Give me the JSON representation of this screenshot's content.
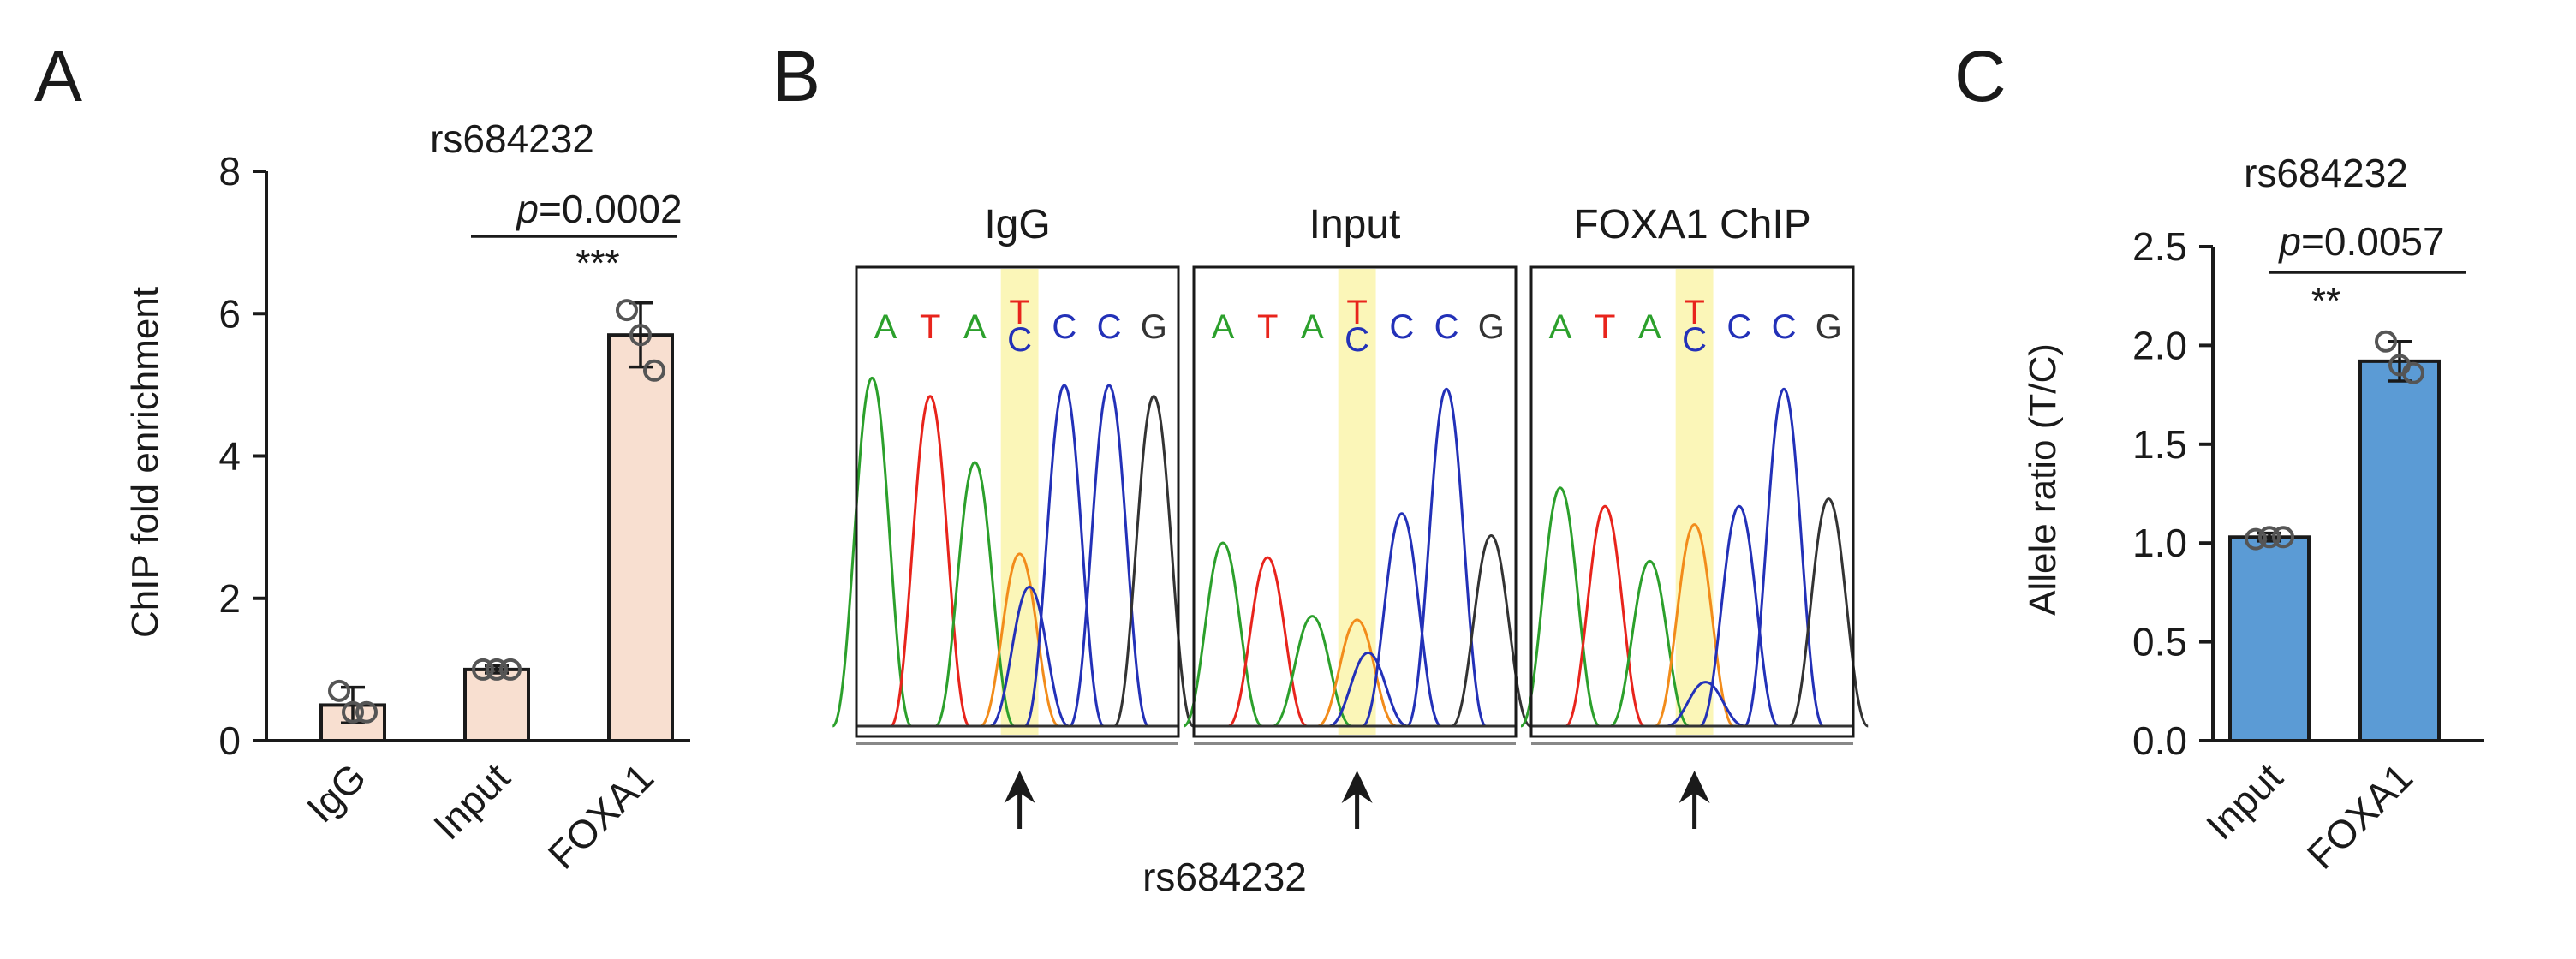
{
  "panels": {
    "A": {
      "letter": "A"
    },
    "B": {
      "letter": "B"
    },
    "C": {
      "letter": "C"
    }
  },
  "chart_data": [
    {
      "panel": "A",
      "type": "bar",
      "title": "rs684232",
      "ylabel": "ChIP fold enrichment",
      "xlabel": "",
      "categories": [
        "IgG",
        "Input",
        "FOXA1"
      ],
      "values": [
        0.5,
        1.0,
        5.7
      ],
      "errors": [
        0.25,
        0.05,
        0.45
      ],
      "points": [
        [
          0.7,
          0.4,
          0.4
        ],
        [
          1.0,
          1.0,
          1.0
        ],
        [
          6.05,
          5.7,
          5.2
        ]
      ],
      "ylim": [
        0,
        8
      ],
      "yticks": [
        "0",
        "2",
        "4",
        "6",
        "8"
      ],
      "bar_color": "#f8dfd0",
      "annotation": {
        "p_label": "p",
        "p_value": "=0.0002",
        "stars": "***"
      }
    },
    {
      "panel": "B",
      "type": "chromatogram",
      "traces": [
        {
          "title": "IgG",
          "bases": [
            "A",
            "T",
            "A",
            "T/C",
            "C",
            "C",
            "G"
          ]
        },
        {
          "title": "Input",
          "bases": [
            "A",
            "T",
            "A",
            "T/C",
            "C",
            "C",
            "G"
          ]
        },
        {
          "title": "FOXA1 ChIP",
          "bases": [
            "A",
            "T",
            "A",
            "T/C",
            "C",
            "C",
            "G"
          ]
        }
      ],
      "base_colors": {
        "A": "#2ca02c",
        "T": "#e8241c",
        "C": "#2331b8",
        "G": "#333333",
        "highlight": "#fbf6b8",
        "orange": "#f28c1b"
      },
      "arrow_label": "rs684232"
    },
    {
      "panel": "C",
      "type": "bar",
      "title": "rs684232",
      "ylabel": "Allele ratio (T/C)",
      "xlabel": "",
      "categories": [
        "Input",
        "FOXA1"
      ],
      "values": [
        1.03,
        1.92
      ],
      "errors": [
        0.02,
        0.1
      ],
      "points": [
        [
          1.02,
          1.03,
          1.03
        ],
        [
          2.02,
          1.9,
          1.86
        ]
      ],
      "ylim": [
        0,
        2.5
      ],
      "yticks": [
        "0.0",
        "0.5",
        "1.0",
        "1.5",
        "2.0",
        "2.5"
      ],
      "bar_color": "#5b9bd5",
      "annotation": {
        "p_label": "p",
        "p_value": "=0.0057",
        "stars": "**"
      }
    }
  ]
}
